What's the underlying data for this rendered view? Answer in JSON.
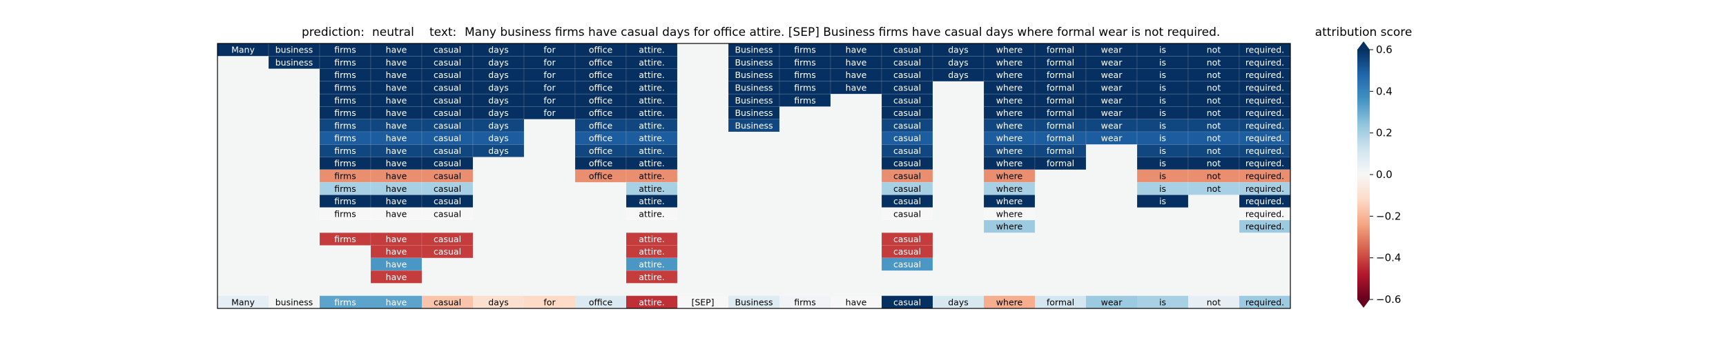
{
  "chart_data": {
    "type": "heatmap",
    "title": {
      "prediction_label": "prediction:",
      "prediction_value": "neutral",
      "text_label": "text:",
      "text_value": "Many business firms have casual days for office attire. [SEP] Business firms have casual days where formal wear is not required."
    },
    "tokens": [
      "Many",
      "business",
      "firms",
      "have",
      "casual",
      "days",
      "for",
      "office",
      "attire.",
      "[SEP]",
      "Business",
      "firms",
      "have",
      "casual",
      "days",
      "where",
      "formal",
      "wear",
      "is",
      "not",
      "required."
    ],
    "rows": [
      {
        "active": [
          0,
          1,
          2,
          3,
          4,
          5,
          6,
          7,
          8,
          10,
          11,
          12,
          13,
          14,
          15,
          16,
          17,
          18,
          19,
          20
        ],
        "vals": [
          0.6,
          0.6,
          0.6,
          0.6,
          0.6,
          0.6,
          0.6,
          0.6,
          0.6,
          0,
          0.6,
          0.6,
          0.6,
          0.6,
          0.6,
          0.6,
          0.6,
          0.6,
          0.6,
          0.6,
          0.6
        ]
      },
      {
        "active": [
          1,
          2,
          3,
          4,
          5,
          6,
          7,
          8,
          10,
          11,
          12,
          13,
          14,
          15,
          16,
          17,
          18,
          19,
          20
        ],
        "vals": [
          0,
          0.6,
          0.6,
          0.6,
          0.6,
          0.6,
          0.6,
          0.6,
          0.6,
          0,
          0.6,
          0.6,
          0.6,
          0.6,
          0.6,
          0.6,
          0.6,
          0.6,
          0.6,
          0.6,
          0.6
        ]
      },
      {
        "active": [
          2,
          3,
          4,
          5,
          6,
          7,
          8,
          10,
          11,
          12,
          13,
          14,
          15,
          16,
          17,
          18,
          19,
          20
        ],
        "vals": [
          0,
          0,
          0.6,
          0.6,
          0.6,
          0.6,
          0.6,
          0.6,
          0.6,
          0,
          0.6,
          0.6,
          0.6,
          0.6,
          0.6,
          0.6,
          0.6,
          0.6,
          0.6,
          0.6,
          0.6
        ]
      },
      {
        "active": [
          2,
          3,
          4,
          5,
          6,
          7,
          8,
          10,
          11,
          12,
          13,
          15,
          16,
          17,
          18,
          19,
          20
        ],
        "vals": [
          0,
          0,
          0.6,
          0.6,
          0.6,
          0.6,
          0.6,
          0.6,
          0.6,
          0,
          0.6,
          0.6,
          0.6,
          0.6,
          0,
          0.6,
          0.6,
          0.6,
          0.6,
          0.6,
          0.6
        ]
      },
      {
        "active": [
          2,
          3,
          4,
          5,
          6,
          7,
          8,
          10,
          11,
          13,
          15,
          16,
          17,
          18,
          19,
          20
        ],
        "vals": [
          0,
          0,
          0.6,
          0.6,
          0.6,
          0.6,
          0.6,
          0.6,
          0.6,
          0,
          0.6,
          0.6,
          0,
          0.6,
          0,
          0.6,
          0.6,
          0.6,
          0.6,
          0.6,
          0.6
        ]
      },
      {
        "active": [
          2,
          3,
          4,
          5,
          6,
          7,
          8,
          10,
          13,
          15,
          16,
          17,
          18,
          19,
          20
        ],
        "vals": [
          0,
          0,
          0.6,
          0.6,
          0.6,
          0.6,
          0.6,
          0.6,
          0.6,
          0,
          0.6,
          0,
          0,
          0.6,
          0,
          0.6,
          0.6,
          0.6,
          0.6,
          0.6,
          0.6
        ]
      },
      {
        "active": [
          2,
          3,
          4,
          5,
          7,
          8,
          10,
          13,
          15,
          16,
          17,
          18,
          19,
          20
        ],
        "vals": [
          0,
          0,
          0.55,
          0.55,
          0.55,
          0.55,
          0,
          0.55,
          0.55,
          0,
          0.55,
          0,
          0,
          0.55,
          0,
          0.55,
          0.55,
          0.55,
          0.55,
          0.55,
          0.55
        ]
      },
      {
        "active": [
          2,
          3,
          4,
          5,
          7,
          8,
          13,
          15,
          16,
          17,
          18,
          19,
          20
        ],
        "vals": [
          0,
          0,
          0.5,
          0.5,
          0.5,
          0.5,
          0,
          0.5,
          0.5,
          0,
          0,
          0,
          0,
          0.5,
          0,
          0.5,
          0.5,
          0.5,
          0.5,
          0.5,
          0.5
        ]
      },
      {
        "active": [
          2,
          3,
          4,
          5,
          7,
          8,
          13,
          15,
          16,
          18,
          19,
          20
        ],
        "vals": [
          0,
          0,
          0.55,
          0.55,
          0.55,
          0.55,
          0,
          0.55,
          0.55,
          0,
          0,
          0,
          0,
          0.55,
          0,
          0.55,
          0.55,
          0,
          0.55,
          0.55,
          0.55
        ]
      },
      {
        "active": [
          2,
          3,
          4,
          7,
          8,
          13,
          15,
          16,
          18,
          19,
          20
        ],
        "vals": [
          0,
          0,
          0.6,
          0.6,
          0.6,
          0,
          0,
          0.6,
          0.6,
          0,
          0,
          0,
          0,
          0.6,
          0,
          0.6,
          0.6,
          0,
          0.6,
          0.6,
          0.6
        ]
      },
      {
        "active": [
          2,
          3,
          4,
          7,
          8,
          13,
          15,
          18,
          19,
          20
        ],
        "vals": [
          0,
          0,
          -0.28,
          -0.28,
          -0.28,
          0,
          0,
          -0.28,
          -0.28,
          0,
          0,
          0,
          0,
          -0.28,
          0,
          -0.28,
          0,
          0,
          -0.28,
          -0.28,
          -0.28
        ]
      },
      {
        "active": [
          2,
          3,
          4,
          8,
          13,
          15,
          18,
          19,
          20
        ],
        "vals": [
          0,
          0,
          0.2,
          0.2,
          0.2,
          0,
          0,
          0,
          0.2,
          0,
          0,
          0,
          0,
          0.2,
          0,
          0.2,
          0,
          0,
          0.2,
          0.2,
          0.2
        ]
      },
      {
        "active": [
          2,
          3,
          4,
          8,
          13,
          15,
          18,
          20
        ],
        "vals": [
          0,
          0,
          0.6,
          0.6,
          0.6,
          0,
          0,
          0,
          0.6,
          0,
          0,
          0,
          0,
          0.6,
          0,
          0.6,
          0,
          0,
          0.6,
          0,
          0.6
        ]
      },
      {
        "active": [
          2,
          3,
          4,
          8,
          13,
          15,
          20
        ],
        "vals": [
          0,
          0,
          0,
          0,
          0,
          0,
          0,
          0,
          0,
          0,
          0,
          0,
          0,
          0,
          0,
          0,
          0,
          0,
          0,
          0,
          0
        ]
      },
      {
        "active": [
          15,
          20
        ],
        "vals": [
          0,
          0,
          0,
          0,
          0,
          0,
          0,
          0,
          0,
          0,
          0,
          0,
          0,
          0,
          0,
          0.22,
          0,
          0,
          0,
          0,
          0.22
        ]
      },
      {
        "active": [
          2,
          3,
          4,
          8,
          13
        ],
        "vals": [
          0,
          0,
          -0.42,
          -0.42,
          -0.42,
          0,
          0,
          0,
          -0.42,
          0,
          0,
          0,
          0,
          -0.42,
          0,
          0,
          0,
          0,
          0,
          0,
          0
        ]
      },
      {
        "active": [
          3,
          4,
          8,
          13
        ],
        "vals": [
          0,
          0,
          0,
          -0.42,
          -0.42,
          0,
          0,
          0,
          -0.42,
          0,
          0,
          0,
          0,
          -0.42,
          0,
          0,
          0,
          0,
          0,
          0,
          0
        ]
      },
      {
        "active": [
          3,
          8,
          13
        ],
        "vals": [
          0,
          0,
          0,
          0.35,
          0,
          0,
          0,
          0,
          0.35,
          0,
          0,
          0,
          0,
          0.35,
          0,
          0,
          0,
          0,
          0,
          0,
          0
        ]
      },
      {
        "active": [
          3,
          8
        ],
        "vals": [
          0,
          0,
          0,
          -0.42,
          0,
          0,
          0,
          0,
          -0.42,
          0,
          0,
          0,
          0,
          0,
          0,
          0,
          0,
          0,
          0,
          0,
          0
        ]
      },
      {
        "active": [],
        "vals": [
          0,
          0,
          0,
          0,
          0,
          0,
          0,
          0,
          0,
          0,
          0,
          0,
          0,
          0,
          0,
          0,
          0,
          0,
          0,
          0,
          0
        ]
      }
    ],
    "final_row": [
      0.06,
      0.01,
      0.32,
      0.32,
      -0.17,
      -0.1,
      -0.12,
      0.09,
      -0.44,
      0,
      0.08,
      0.02,
      0.0,
      0.6,
      0.1,
      -0.22,
      0.11,
      0.22,
      0.2,
      0.05,
      0.22
    ],
    "colorbar": {
      "label": "attribution score",
      "min": -0.6,
      "max": 0.6,
      "ticks": [
        0.6,
        0.4,
        0.2,
        0.0,
        -0.2,
        -0.4,
        -0.6
      ],
      "tick_labels": [
        "0.6",
        "0.4",
        "0.2",
        "0.0",
        "−0.2",
        "−0.4",
        "−0.6"
      ]
    },
    "colormap": "RdBu",
    "empty_color": "#f4f6f6"
  }
}
